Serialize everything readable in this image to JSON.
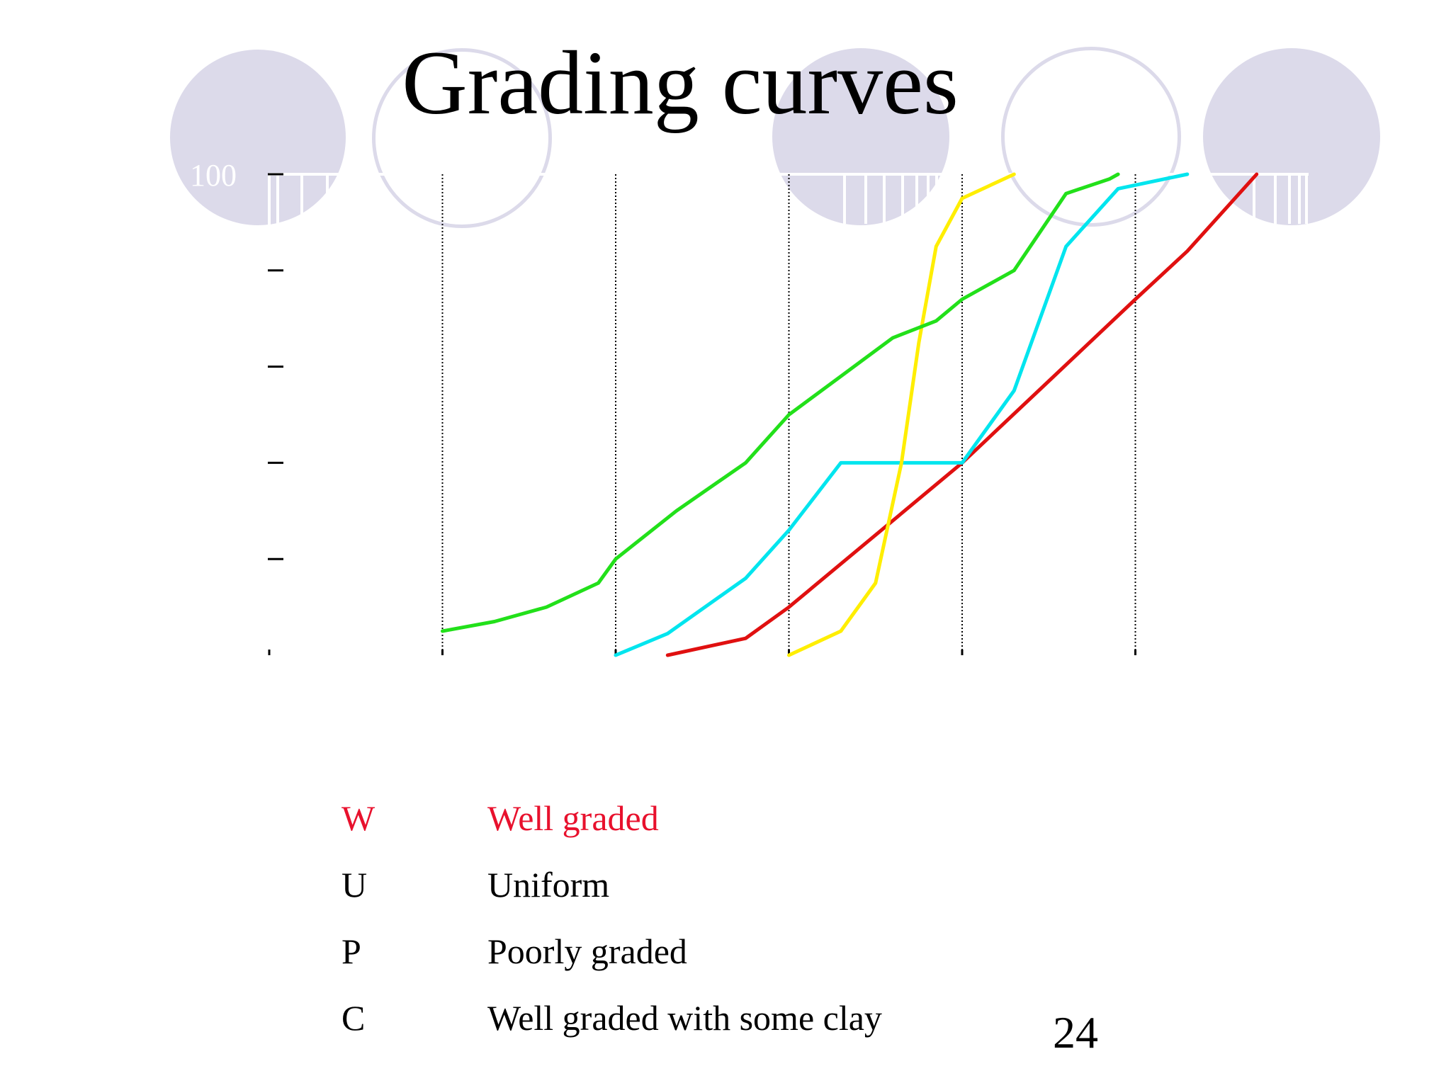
{
  "slide": {
    "title": "Grading curves",
    "page_number": "24"
  },
  "legend": [
    {
      "code": "W",
      "label": "Well graded",
      "color": "#e8112d"
    },
    {
      "code": "U",
      "label": "Uniform",
      "color": "#000000"
    },
    {
      "code": "P",
      "label": "Poorly graded",
      "color": "#000000"
    },
    {
      "code": "C",
      "label": "Well graded with some clay",
      "color": "#000000"
    }
  ],
  "colors": {
    "decoration": "#dcdaea",
    "curve_red": "#e01010",
    "curve_cyan": "#00e5ee",
    "curve_yellow": "#ffee00",
    "curve_green": "#22e01a"
  },
  "chart_data": {
    "type": "line",
    "title": "",
    "xlabel": "",
    "ylabel": "",
    "y_tick_labels": [
      "100"
    ],
    "ylim": [
      0,
      100
    ],
    "xlim": [
      0,
      6
    ],
    "grid": "vertical dotted lines at x = 1, 2, 3, 4, 5",
    "series": [
      {
        "color": "#e01010",
        "points": [
          [
            2.3,
            0
          ],
          [
            2.75,
            3.5
          ],
          [
            3.0,
            10
          ],
          [
            3.5,
            25
          ],
          [
            4.0,
            40
          ],
          [
            4.5,
            57
          ],
          [
            5.0,
            74
          ],
          [
            5.3,
            84
          ],
          [
            5.7,
            100
          ]
        ]
      },
      {
        "color": "#00e5ee",
        "points": [
          [
            2.0,
            0
          ],
          [
            2.3,
            4.5
          ],
          [
            2.75,
            16
          ],
          [
            3.0,
            26
          ],
          [
            3.3,
            40
          ],
          [
            4.0,
            40
          ],
          [
            4.3,
            55
          ],
          [
            4.6,
            85
          ],
          [
            4.9,
            97
          ],
          [
            5.3,
            100
          ]
        ]
      },
      {
        "color": "#ffee00",
        "points": [
          [
            3.0,
            0
          ],
          [
            3.3,
            5
          ],
          [
            3.5,
            15
          ],
          [
            3.65,
            40
          ],
          [
            3.75,
            65
          ],
          [
            3.85,
            85
          ],
          [
            4.0,
            95
          ],
          [
            4.3,
            100
          ]
        ]
      },
      {
        "color": "#22e01a",
        "points": [
          [
            1.0,
            5
          ],
          [
            1.3,
            7
          ],
          [
            1.6,
            10
          ],
          [
            1.9,
            15
          ],
          [
            2.0,
            20
          ],
          [
            2.35,
            30
          ],
          [
            2.75,
            40
          ],
          [
            3.0,
            50
          ],
          [
            3.3,
            58
          ],
          [
            3.6,
            66
          ],
          [
            3.85,
            69.5
          ],
          [
            4.0,
            74
          ],
          [
            4.3,
            80
          ],
          [
            4.6,
            96
          ],
          [
            4.85,
            99
          ],
          [
            4.9,
            100
          ]
        ]
      }
    ]
  }
}
